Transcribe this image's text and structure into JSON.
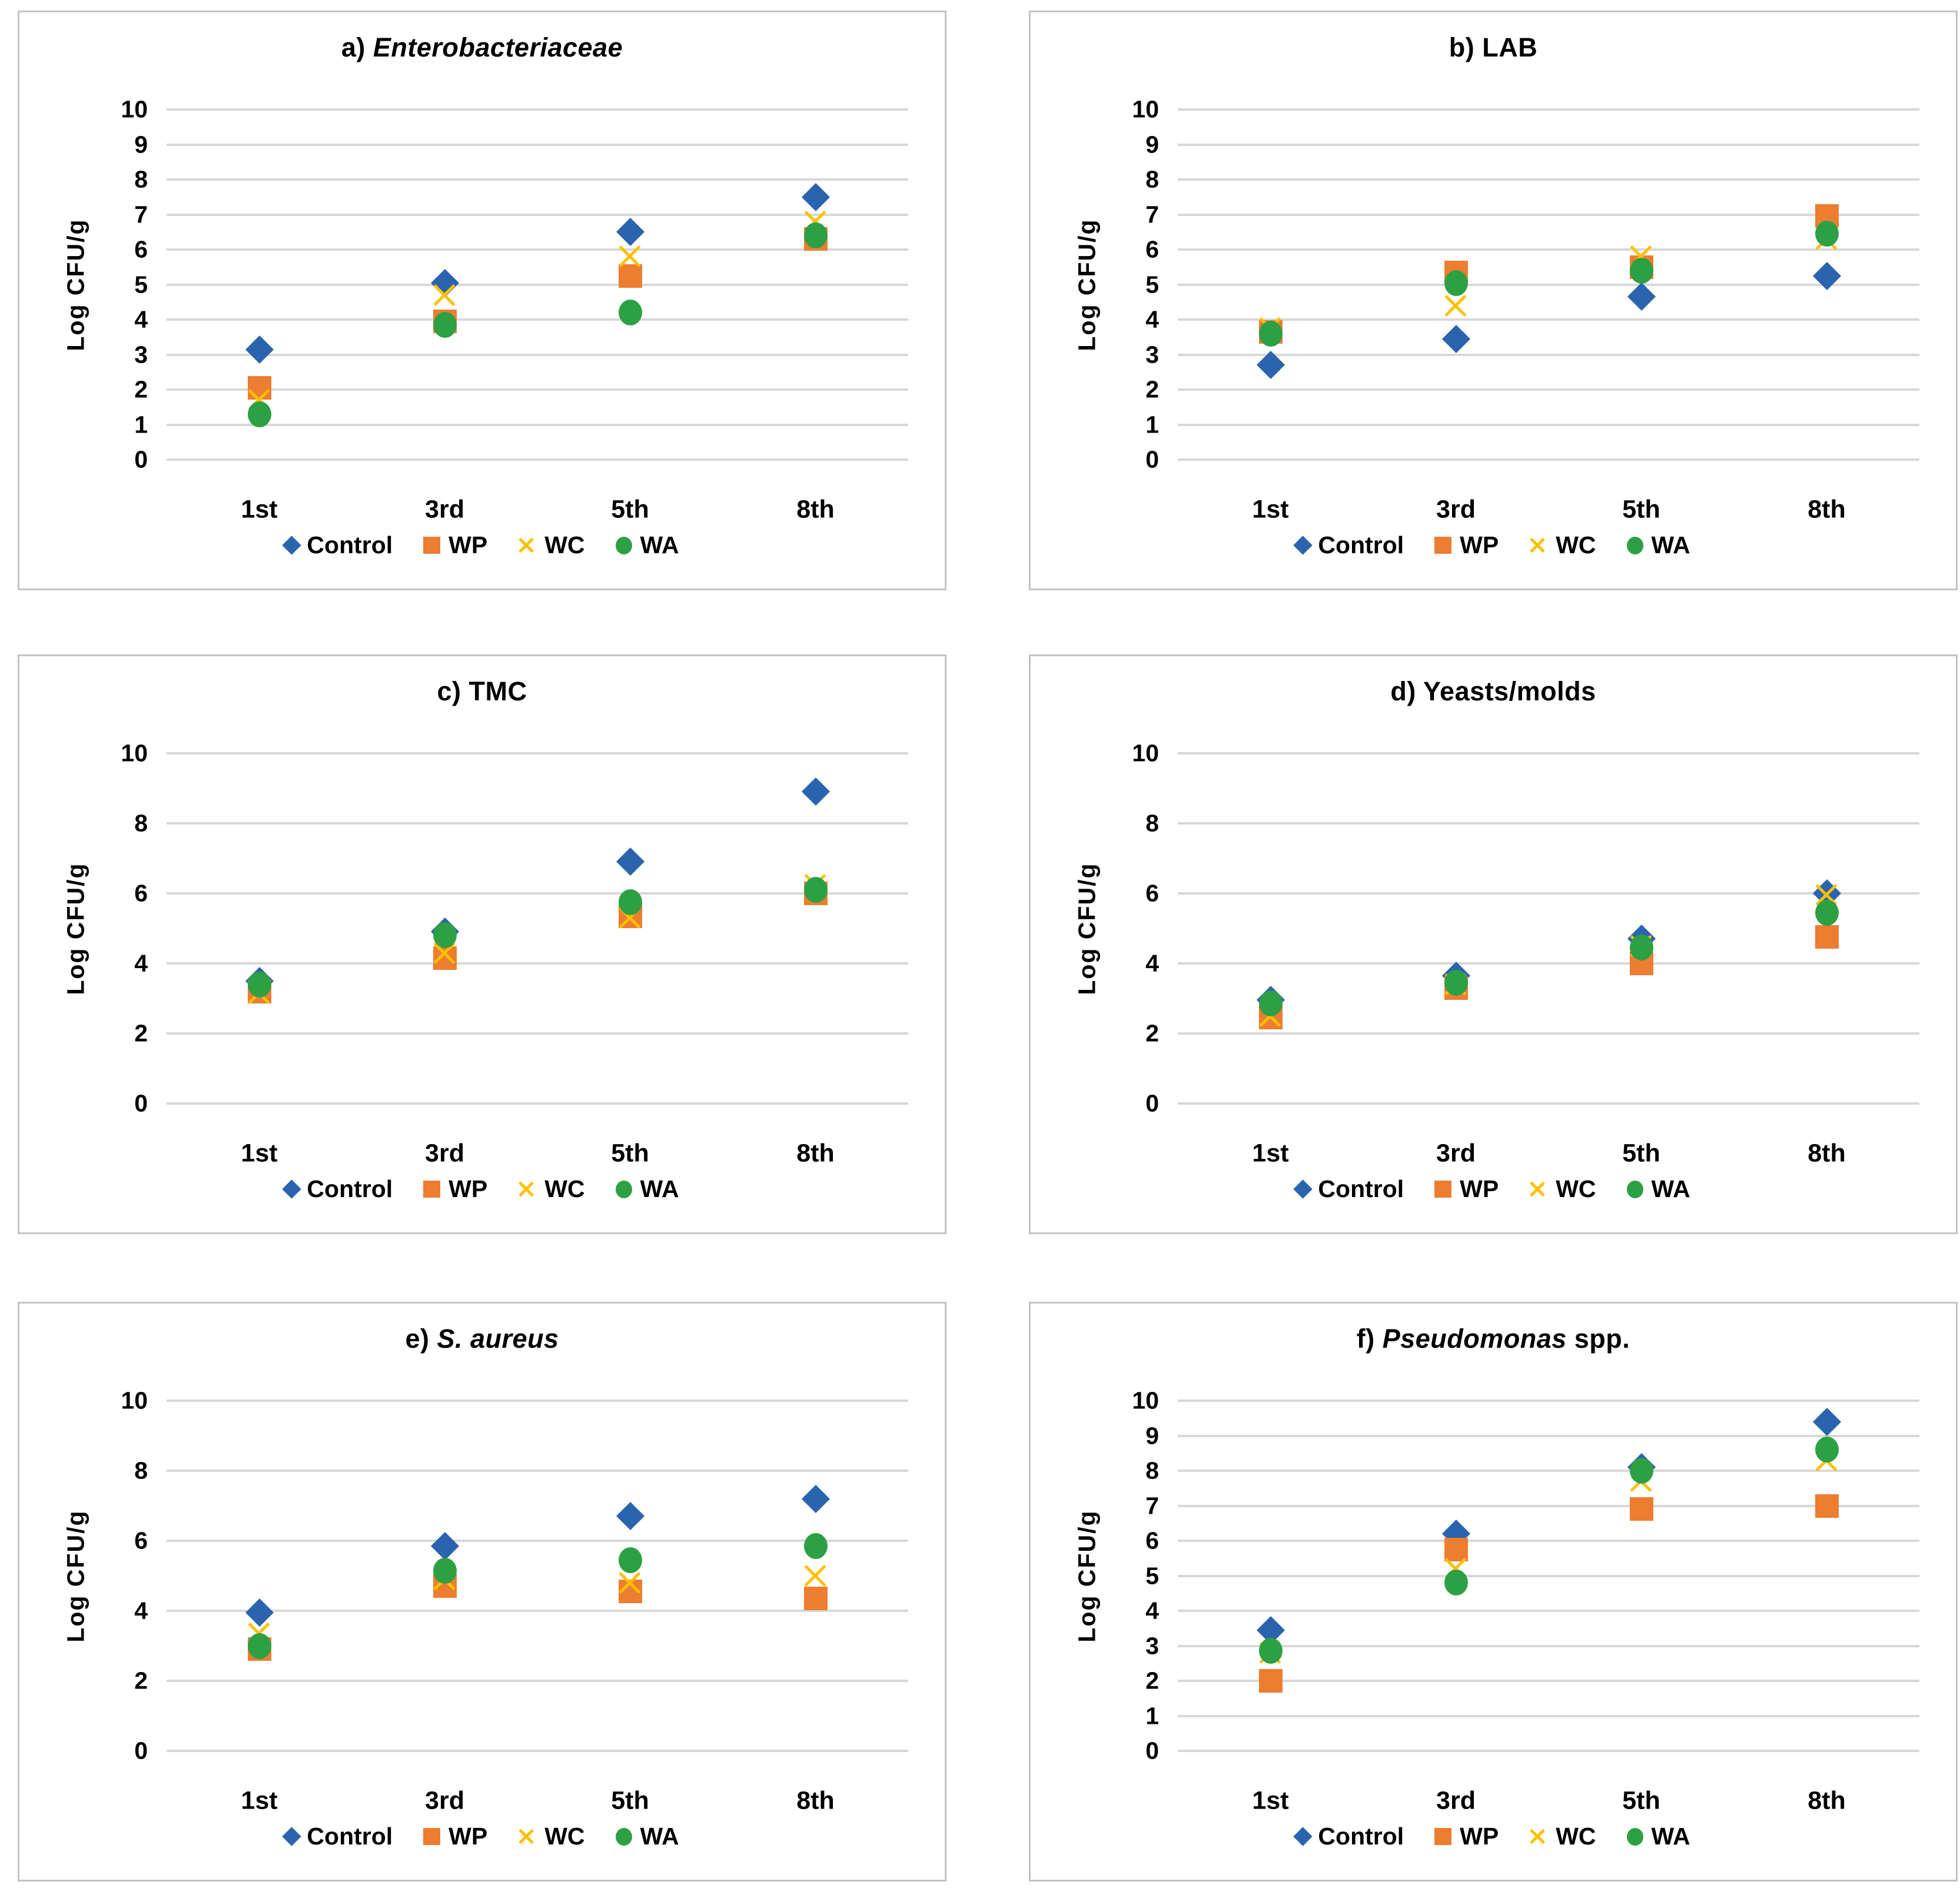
{
  "figure": {
    "ylabel": "Log CFU/g",
    "categories": [
      "1st",
      "3rd",
      "5th",
      "8th"
    ],
    "legend_labels": [
      "Control",
      "WP",
      "WC",
      "WA"
    ]
  },
  "colors": {
    "control_blue": "#2B64AE",
    "wp_orange": "#ED7D31",
    "wc_gold": "#FFC000",
    "wa_green": "#2EA044",
    "gridline": "#D8D8D8",
    "panel_border": "#C3C3C3",
    "text": "#000000",
    "background": "#FFFFFF"
  },
  "chart_data": [
    {
      "id": "a",
      "type": "scatter",
      "title_parts": [
        {
          "text": "a) ",
          "italic": false
        },
        {
          "text": "Enterobacteriaceae",
          "italic": true
        }
      ],
      "ylabel": "Log CFU/g",
      "ylim": [
        0,
        10
      ],
      "y_tick_step": 1,
      "grid": true,
      "legend_position": "bottom",
      "categories": [
        "1st",
        "3rd",
        "5th",
        "8th"
      ],
      "series": [
        {
          "name": "Control",
          "marker": "diamond",
          "color": "#2B64AE",
          "values": [
            3.15,
            5.05,
            6.5,
            7.5
          ]
        },
        {
          "name": "WP",
          "marker": "square",
          "color": "#ED7D31",
          "values": [
            2.05,
            3.95,
            5.25,
            6.3
          ]
        },
        {
          "name": "WC",
          "marker": "x",
          "color": "#FFC000",
          "values": [
            1.7,
            4.7,
            5.8,
            6.8
          ]
        },
        {
          "name": "WA",
          "marker": "circle",
          "color": "#2EA044",
          "values": [
            1.3,
            3.85,
            4.2,
            6.4
          ]
        }
      ]
    },
    {
      "id": "b",
      "type": "scatter",
      "title_parts": [
        {
          "text": "b) LAB",
          "italic": false
        }
      ],
      "ylabel": "Log CFU/g",
      "ylim": [
        0,
        10
      ],
      "y_tick_step": 1,
      "grid": true,
      "legend_position": "bottom",
      "categories": [
        "1st",
        "3rd",
        "5th",
        "8th"
      ],
      "series": [
        {
          "name": "Control",
          "marker": "diamond",
          "color": "#2B64AE",
          "values": [
            2.7,
            3.45,
            4.65,
            5.25
          ]
        },
        {
          "name": "WP",
          "marker": "square",
          "color": "#ED7D31",
          "values": [
            3.65,
            5.35,
            5.5,
            6.95
          ]
        },
        {
          "name": "WC",
          "marker": "x",
          "color": "#FFC000",
          "values": [
            3.75,
            4.4,
            5.8,
            6.3
          ]
        },
        {
          "name": "WA",
          "marker": "circle",
          "color": "#2EA044",
          "values": [
            3.6,
            5.05,
            5.4,
            6.45
          ]
        }
      ]
    },
    {
      "id": "c",
      "type": "scatter",
      "title_parts": [
        {
          "text": "c) TMC",
          "italic": false
        }
      ],
      "ylabel": "Log CFU/g",
      "ylim": [
        0,
        10
      ],
      "y_tick_step": 2,
      "grid": true,
      "legend_position": "bottom",
      "categories": [
        "1st",
        "3rd",
        "5th",
        "8th"
      ],
      "series": [
        {
          "name": "Control",
          "marker": "diamond",
          "color": "#2B64AE",
          "values": [
            3.5,
            4.9,
            6.9,
            8.9
          ]
        },
        {
          "name": "WP",
          "marker": "square",
          "color": "#ED7D31",
          "values": [
            3.2,
            4.15,
            5.35,
            6.0
          ]
        },
        {
          "name": "WC",
          "marker": "x",
          "color": "#FFC000",
          "values": [
            3.15,
            4.3,
            5.3,
            6.25
          ]
        },
        {
          "name": "WA",
          "marker": "circle",
          "color": "#2EA044",
          "values": [
            3.4,
            4.8,
            5.75,
            6.1
          ]
        }
      ]
    },
    {
      "id": "d",
      "type": "scatter",
      "title_parts": [
        {
          "text": "d) Yeasts/molds",
          "italic": false
        }
      ],
      "ylabel": "Log CFU/g",
      "ylim": [
        0,
        10
      ],
      "y_tick_step": 2,
      "grid": true,
      "legend_position": "bottom",
      "categories": [
        "1st",
        "3rd",
        "5th",
        "8th"
      ],
      "series": [
        {
          "name": "Control",
          "marker": "diamond",
          "color": "#2B64AE",
          "values": [
            2.95,
            3.65,
            4.7,
            6.0
          ]
        },
        {
          "name": "WP",
          "marker": "square",
          "color": "#ED7D31",
          "values": [
            2.45,
            3.3,
            4.0,
            4.75
          ]
        },
        {
          "name": "WC",
          "marker": "x",
          "color": "#FFC000",
          "values": [
            2.5,
            3.4,
            4.5,
            5.95
          ]
        },
        {
          "name": "WA",
          "marker": "circle",
          "color": "#2EA044",
          "values": [
            2.85,
            3.45,
            4.45,
            5.45
          ]
        }
      ]
    },
    {
      "id": "e",
      "type": "scatter",
      "title_parts": [
        {
          "text": "e) ",
          "italic": false
        },
        {
          "text": "S. aureus",
          "italic": true
        }
      ],
      "ylabel": "Log CFU/g",
      "ylim": [
        0,
        10
      ],
      "y_tick_step": 2,
      "grid": true,
      "legend_position": "bottom",
      "categories": [
        "1st",
        "3rd",
        "5th",
        "8th"
      ],
      "series": [
        {
          "name": "Control",
          "marker": "diamond",
          "color": "#2B64AE",
          "values": [
            3.95,
            5.85,
            6.7,
            7.2
          ]
        },
        {
          "name": "WP",
          "marker": "square",
          "color": "#ED7D31",
          "values": [
            2.9,
            4.7,
            4.55,
            4.35
          ]
        },
        {
          "name": "WC",
          "marker": "x",
          "color": "#FFC000",
          "values": [
            3.35,
            4.9,
            4.8,
            5.0
          ]
        },
        {
          "name": "WA",
          "marker": "circle",
          "color": "#2EA044",
          "values": [
            3.0,
            5.15,
            5.45,
            5.85
          ]
        }
      ]
    },
    {
      "id": "f",
      "type": "scatter",
      "title_parts": [
        {
          "text": "f) ",
          "italic": false
        },
        {
          "text": "Pseudomonas",
          "italic": true
        },
        {
          "text": " spp.",
          "italic": false
        }
      ],
      "ylabel": "Log CFU/g",
      "ylim": [
        0,
        10
      ],
      "y_tick_step": 1,
      "grid": true,
      "legend_position": "bottom",
      "categories": [
        "1st",
        "3rd",
        "5th",
        "8th"
      ],
      "series": [
        {
          "name": "Control",
          "marker": "diamond",
          "color": "#2B64AE",
          "values": [
            3.45,
            6.2,
            8.1,
            9.4
          ]
        },
        {
          "name": "WP",
          "marker": "square",
          "color": "#ED7D31",
          "values": [
            2.0,
            5.75,
            6.9,
            7.0
          ]
        },
        {
          "name": "WC",
          "marker": "x",
          "color": "#FFC000",
          "values": [
            2.8,
            5.2,
            7.7,
            8.3
          ]
        },
        {
          "name": "WA",
          "marker": "circle",
          "color": "#2EA044",
          "values": [
            2.85,
            4.8,
            8.0,
            8.6
          ]
        }
      ]
    }
  ]
}
